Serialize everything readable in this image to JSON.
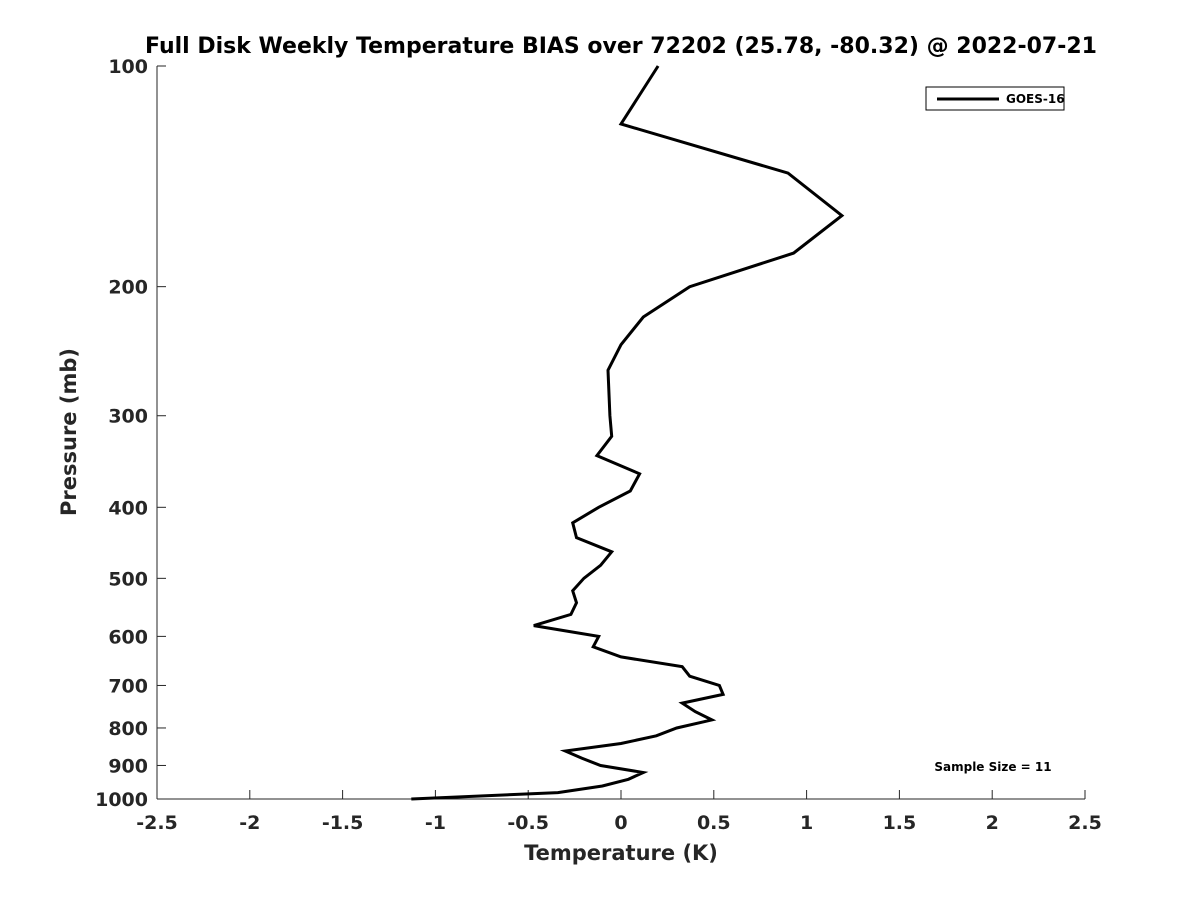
{
  "chart_data": {
    "type": "line",
    "title": "Full Disk Weekly Temperature BIAS over 72202 (25.78, -80.32) @ 2022-07-21",
    "xlabel": "Temperature (K)",
    "ylabel": "Pressure (mb)",
    "xlim": [
      -2.5,
      2.5
    ],
    "ylim": [
      100,
      1000
    ],
    "yscale": "log",
    "y_reversed": true,
    "grid": false,
    "xticks": [
      "-2.5",
      "-2",
      "-1.5",
      "-1",
      "-0.5",
      "0",
      "0.5",
      "1",
      "1.5",
      "2",
      "2.5"
    ],
    "yticks": [
      "100",
      "200",
      "300",
      "400",
      "500",
      "600",
      "700",
      "800",
      "900",
      "1000"
    ],
    "legend": {
      "placement": "top-right",
      "entries": [
        "GOES-16"
      ]
    },
    "annotation": "Sample Size = 11",
    "series": [
      {
        "name": "GOES-16",
        "color": "#000000",
        "pressure": [
          100,
          120,
          140,
          160,
          180,
          200,
          220,
          240,
          260,
          300,
          320,
          340,
          360,
          380,
          400,
          420,
          440,
          460,
          480,
          500,
          520,
          540,
          560,
          580,
          600,
          620,
          640,
          660,
          680,
          700,
          720,
          740,
          760,
          780,
          800,
          820,
          840,
          860,
          880,
          900,
          920,
          940,
          960,
          980,
          1000
        ],
        "temperature": [
          0.2,
          0.0,
          0.9,
          1.19,
          0.93,
          0.37,
          0.12,
          0.0,
          -0.07,
          -0.06,
          -0.05,
          -0.13,
          0.1,
          0.05,
          -0.12,
          -0.26,
          -0.24,
          -0.05,
          -0.11,
          -0.2,
          -0.26,
          -0.24,
          -0.27,
          -0.47,
          -0.12,
          -0.15,
          0.0,
          0.33,
          0.37,
          0.53,
          0.55,
          0.33,
          0.4,
          0.49,
          0.3,
          0.19,
          0.0,
          -0.3,
          -0.21,
          -0.11,
          0.12,
          0.04,
          -0.1,
          -0.34,
          -1.13
        ]
      }
    ]
  }
}
